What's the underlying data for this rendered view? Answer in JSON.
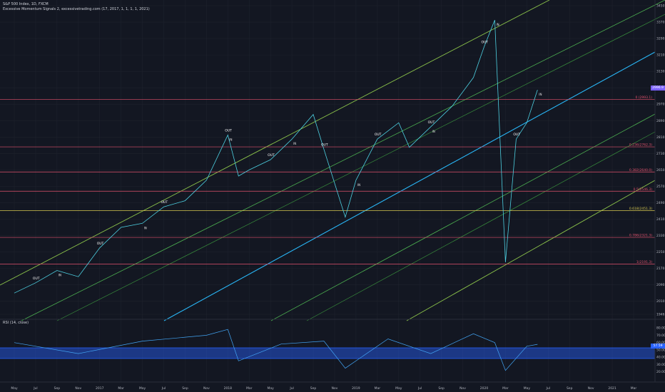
{
  "header": {
    "symbol_line": "S&P 500 Index, 1D, FXCM",
    "indicator_line": "Excessive Momentum Signals 2, excessivetrading.com (17, 2017, 1, 1, 1, 1, 2021)"
  },
  "rsi": {
    "label": "RSI (14, close)",
    "ticks": [
      "80.00",
      "70.00",
      "60.00",
      "50.00",
      "40.00",
      "30.00",
      "20.00"
    ],
    "last": "57.59",
    "band_color": "#2962ff"
  },
  "price_axis": {
    "ticks": [
      "3450.0",
      "3370.0",
      "3290.0",
      "3210.0",
      "3130.0",
      "3050.0",
      "2970.0",
      "2890.0",
      "2810.0",
      "2730.0",
      "2650.0",
      "2570.0",
      "2490.0",
      "2410.0",
      "2330.0",
      "2250.0",
      "2170.0",
      "2090.0",
      "2010.0",
      "1946.5"
    ],
    "last_price": "2996.9",
    "last_color": "#7b61ff"
  },
  "time_axis": {
    "labels": [
      "May",
      "Jul",
      "Sep",
      "Nov",
      "2017",
      "Mar",
      "May",
      "Jul",
      "Sep",
      "Nov",
      "2018",
      "Mar",
      "May",
      "Jul",
      "Sep",
      "Nov",
      "2019",
      "Mar",
      "May",
      "Jul",
      "Sep",
      "Nov",
      "2020",
      "Mar",
      "May",
      "Jul",
      "Sep",
      "Nov",
      "2021",
      "Mar"
    ]
  },
  "fib_levels": [
    {
      "label": "0 (2993.1)",
      "color": "#e2526d"
    },
    {
      "label": "0.236(2762.3)",
      "color": "#e2526d"
    },
    {
      "label": "0.382(2640.0)",
      "color": "#e2526d"
    },
    {
      "label": "0.5(2546.3)",
      "color": "#e2526d"
    },
    {
      "label": "0.618(2451.3)",
      "color": "#d4c64e"
    },
    {
      "label": "0.786(2321.3)",
      "color": "#e2526d"
    },
    {
      "label": "1(2191.3)",
      "color": "#e2526d"
    }
  ],
  "signals": {
    "out_label": "OUT",
    "in_label": "IN"
  },
  "chart_data": {
    "type": "line",
    "title": "S&P 500 Index, 1D, FXCM",
    "ylim": [
      1946.5,
      3450
    ],
    "series": [
      {
        "name": "S&P 500",
        "x": [
          "2016-05",
          "2016-07",
          "2016-09",
          "2016-11",
          "2017-01",
          "2017-03",
          "2017-05",
          "2017-07",
          "2017-09",
          "2017-11",
          "2018-01",
          "2018-02",
          "2018-03",
          "2018-05",
          "2018-07",
          "2018-09",
          "2018-10",
          "2018-12",
          "2019-01",
          "2019-03",
          "2019-05",
          "2019-06",
          "2019-08",
          "2019-10",
          "2019-12",
          "2020-01",
          "2020-02",
          "2020-03",
          "2020-04",
          "2020-05",
          "2020-06"
        ],
        "values": [
          2050,
          2100,
          2160,
          2130,
          2270,
          2370,
          2390,
          2470,
          2500,
          2600,
          2820,
          2620,
          2650,
          2700,
          2800,
          2920,
          2750,
          2420,
          2600,
          2800,
          2880,
          2760,
          2860,
          2960,
          3100,
          3250,
          3380,
          2200,
          2800,
          2880,
          3040
        ]
      },
      {
        "name": "RSI (14, close)",
        "x": [
          "2016-05",
          "2016-11",
          "2017-05",
          "2017-11",
          "2018-01",
          "2018-02",
          "2018-06",
          "2018-10",
          "2018-12",
          "2019-04",
          "2019-08",
          "2019-12",
          "2020-02",
          "2020-03",
          "2020-05",
          "2020-06"
        ],
        "values": [
          60,
          45,
          62,
          70,
          78,
          35,
          58,
          62,
          25,
          65,
          45,
          72,
          60,
          22,
          55,
          57.59
        ]
      }
    ],
    "fib_retracement": [
      2993.1,
      2762.3,
      2640.0,
      2546.3,
      2451.3,
      2321.3,
      2191.3
    ],
    "grid": true
  }
}
